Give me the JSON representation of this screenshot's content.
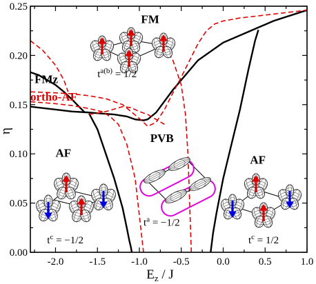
{
  "chart_data": {
    "type": "line",
    "xlabel": "E_z / J",
    "xlabel_main": "E",
    "xlabel_sub": "z",
    "xlabel_rest": " / J",
    "ylabel": "η",
    "xlim": [
      -2.3,
      1.0
    ],
    "ylim": [
      0.0,
      0.25
    ],
    "x_ticks": [
      -2.0,
      -1.5,
      -1.0,
      -0.5,
      0.0,
      0.5,
      1.0
    ],
    "x_tick_labels": [
      "-2.0",
      "-1.5",
      "-1.0",
      "-0.5",
      "0.0",
      "0.5",
      "1.0"
    ],
    "y_ticks": [
      0.0,
      0.05,
      0.1,
      0.15,
      0.2,
      0.25
    ],
    "y_tick_labels": [
      "0.00",
      "0.05",
      "0.10",
      "0.15",
      "0.20",
      "0.25"
    ],
    "grid": false,
    "series": [
      {
        "style": "solid-black",
        "x": [
          -2.3,
          -2.0,
          -1.8,
          -1.6,
          -1.45,
          -1.3,
          -1.15,
          -1.05,
          -0.95,
          -0.9,
          -0.8,
          -0.6,
          -0.3,
          0.0,
          0.3,
          0.6,
          1.0
        ],
        "y": [
          0.148,
          0.145,
          0.143,
          0.142,
          0.141,
          0.14,
          0.138,
          0.135,
          0.134,
          0.135,
          0.142,
          0.165,
          0.195,
          0.213,
          0.224,
          0.235,
          0.246
        ]
      },
      {
        "style": "solid-black",
        "x": [
          -2.3,
          -2.2,
          -2.1,
          -2.0,
          -1.9,
          -1.8,
          -1.72,
          -1.65
        ],
        "y": [
          0.183,
          0.18,
          0.175,
          0.17,
          0.163,
          0.155,
          0.148,
          0.142
        ]
      },
      {
        "style": "solid-black",
        "x": [
          -1.6,
          -1.5,
          -1.4,
          -1.3,
          -1.2,
          -1.15,
          -1.12,
          -1.1,
          -1.09
        ],
        "y": [
          0.141,
          0.125,
          0.1,
          0.075,
          0.045,
          0.025,
          0.012,
          0.005,
          0.0
        ]
      },
      {
        "style": "solid-black",
        "x": [
          -0.15,
          -0.12,
          -0.08,
          0.0,
          0.1,
          0.2,
          0.3,
          0.38,
          0.42
        ],
        "y": [
          0.0,
          0.02,
          0.04,
          0.075,
          0.11,
          0.145,
          0.185,
          0.215,
          0.226
        ]
      },
      {
        "style": "dashed-red",
        "x": [
          -2.3,
          -2.15,
          -2.0,
          -1.9,
          -1.85
        ],
        "y": [
          0.215,
          0.205,
          0.19,
          0.175,
          0.163
        ]
      },
      {
        "style": "dashed-red",
        "x": [
          -2.3,
          -2.0,
          -1.8,
          -1.6,
          -1.4,
          -1.2,
          -1.1,
          -1.0,
          -0.9,
          -0.8,
          -0.7,
          -0.6,
          -0.5,
          -0.4,
          -0.3,
          -0.2,
          -0.1,
          0.0,
          0.2,
          0.4,
          0.6,
          0.8,
          1.0
        ],
        "y": [
          0.163,
          0.162,
          0.161,
          0.159,
          0.156,
          0.15,
          0.143,
          0.136,
          0.128,
          0.132,
          0.145,
          0.162,
          0.178,
          0.195,
          0.212,
          0.225,
          0.232,
          0.235,
          0.238,
          0.24,
          0.242,
          0.244,
          0.246
        ]
      },
      {
        "style": "dashed-red",
        "x": [
          -2.3,
          -2.0,
          -1.8,
          -1.6,
          -1.45,
          -1.35,
          -1.25,
          -1.15,
          -1.05,
          -0.95
        ],
        "y": [
          0.153,
          0.151,
          0.149,
          0.146,
          0.143,
          0.138,
          0.13,
          0.11,
          0.075,
          0.0
        ]
      },
      {
        "style": "dashed-red",
        "x": [
          -1.6,
          -1.4,
          -1.2,
          -1.1,
          -1.0,
          -0.9,
          -0.8,
          -0.7
        ],
        "y": [
          0.14,
          0.143,
          0.148,
          0.147,
          0.143,
          0.14,
          0.135,
          0.13
        ]
      },
      {
        "style": "dashed-red",
        "x": [
          -0.75,
          -0.6,
          -0.5,
          -0.45,
          -0.42,
          -0.4,
          -0.38
        ],
        "y": [
          0.215,
          0.195,
          0.17,
          0.14,
          0.1,
          0.05,
          0.0
        ]
      }
    ],
    "annotations": [
      {
        "id": "fm",
        "text": "FM",
        "kind": "phase",
        "x": -0.98,
        "y": 0.233
      },
      {
        "id": "fmz",
        "text": "FMz",
        "kind": "phase",
        "x": -2.25,
        "y": 0.172
      },
      {
        "id": "ortho",
        "text": "ortho-AF",
        "kind": "phase-red",
        "x": -2.3,
        "y": 0.154
      },
      {
        "id": "af_left",
        "text": "AF",
        "kind": "phase",
        "x": -2.0,
        "y": 0.097
      },
      {
        "id": "pvb",
        "text": "PVB",
        "kind": "phase",
        "x": -0.87,
        "y": 0.112
      },
      {
        "id": "af_right",
        "text": "AF",
        "kind": "phase",
        "x": 0.32,
        "y": 0.09
      },
      {
        "id": "t_ab",
        "text": "t",
        "sup": "a(b)",
        "rest": " = 1/2",
        "kind": "hop",
        "x": -1.5,
        "y": 0.178
      },
      {
        "id": "t_a",
        "text": "t",
        "sup": "a",
        "rest": " = −1/2",
        "kind": "hop",
        "x": -0.95,
        "y": 0.027
      },
      {
        "id": "tc_left",
        "text": "t",
        "sup": "c",
        "rest": " = −1/2",
        "kind": "hop",
        "x": -2.1,
        "y": 0.009
      },
      {
        "id": "tc_right",
        "text": "t",
        "sup": "c",
        "rest": " = 1/2",
        "kind": "hop",
        "x": 0.3,
        "y": 0.009
      }
    ]
  }
}
